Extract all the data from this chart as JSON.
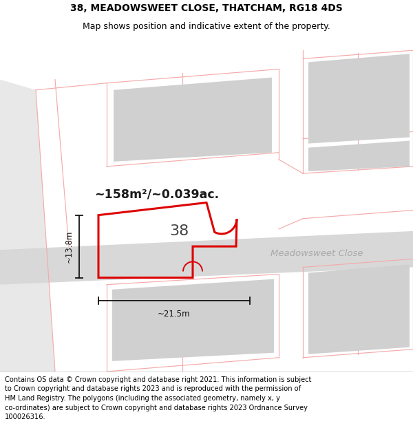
{
  "title_line1": "38, MEADOWSWEET CLOSE, THATCHAM, RG18 4DS",
  "title_line2": "Map shows position and indicative extent of the property.",
  "footer_text": "Contains OS data © Crown copyright and database right 2021. This information is subject\nto Crown copyright and database rights 2023 and is reproduced with the permission of\nHM Land Registry. The polygons (including the associated geometry, namely x, y\nco-ordinates) are subject to Crown copyright and database rights 2023 Ordnance Survey\n100026316.",
  "area_label": "~158m²/~0.039ac.",
  "number_label": "38",
  "road_label": "Meadowsweet Close",
  "dim_width": "~21.5m",
  "dim_height": "~13.8m",
  "bg_map": "#ffffff",
  "road_fill": "#d8d8d8",
  "building_fill": "#d0d0d0",
  "grid_color": "#f5aaaa",
  "plot_stroke": "#dd0000",
  "dim_color": "#111111",
  "road_label_color": "#aaaaaa",
  "title_fs": 10,
  "sub_fs": 9,
  "footer_fs": 7.1,
  "area_fs": 12.5,
  "num_fs": 16,
  "road_lbl_fs": 9.5,
  "dim_fs": 8.5,
  "left_strip_color": "#e8e8e8"
}
